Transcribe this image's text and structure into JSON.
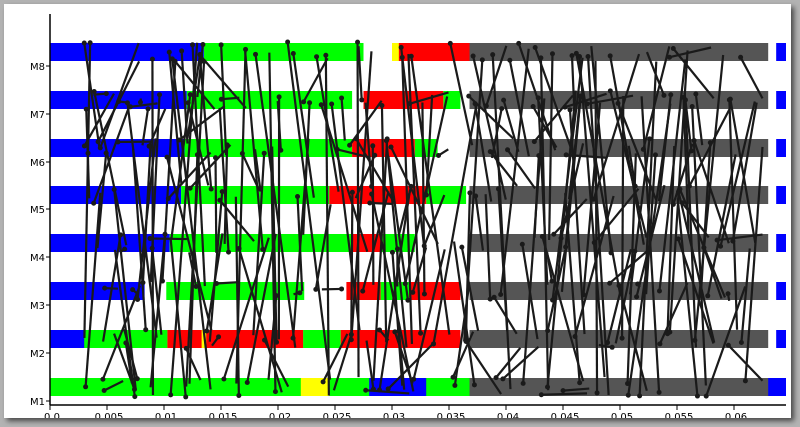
{
  "chart_data": {
    "type": "gantt",
    "title": "",
    "xlabel": "",
    "ylabel": "",
    "xlim": [
      0,
      0.0635
    ],
    "x_ticks": [
      "0.0",
      "0.005",
      "0.01",
      "0.015",
      "0.02",
      "0.025",
      "0.03",
      "0.035",
      "0.04",
      "0.045",
      "0.05",
      "0.055",
      "0.06"
    ],
    "x_tick_values": [
      0,
      0.005,
      0.01,
      0.015,
      0.02,
      0.025,
      0.03,
      0.035,
      0.04,
      0.045,
      0.05,
      0.055,
      0.06
    ],
    "categories": [
      "M1",
      "M2",
      "M3",
      "M4",
      "M5",
      "M6",
      "M7",
      "M8"
    ],
    "colors": {
      "blue": "#0000ff",
      "green": "#00ff00",
      "red": "#ff0000",
      "yellow": "#ffff00",
      "gray": "#555555",
      "line": "#1a1a1a"
    },
    "series": [
      {
        "name": "",
        "color": "blue",
        "intervals": [
          [
            0,
            0,
            0.0695
          ],
          [
            1,
            0,
            0.008
          ],
          [
            2,
            0,
            0.0083
          ],
          [
            3,
            0,
            0.0105
          ],
          [
            4,
            0,
            0.0115
          ],
          [
            5,
            0,
            0.0118
          ],
          [
            6,
            0,
            0.012
          ],
          [
            7,
            0,
            0.0135
          ],
          [
            0,
            0.0637,
            0.0648
          ],
          [
            1,
            0.0637,
            0.0648
          ],
          [
            2,
            0.0637,
            0.0648
          ],
          [
            3,
            0.0637,
            0.0648
          ],
          [
            4,
            0.0637,
            0.0648
          ],
          [
            5,
            0.0637,
            0.0648
          ],
          [
            6,
            0.0637,
            0.0648
          ],
          [
            7,
            0.0637,
            0.0648
          ]
        ]
      },
      {
        "name": "",
        "color": "green",
        "intervals": [
          [
            0,
            0,
            0.023
          ],
          [
            0,
            0.0245,
            0.028
          ],
          [
            1,
            0.003,
            0.0103
          ],
          [
            1,
            0.0222,
            0.0255
          ],
          [
            2,
            0.0102,
            0.0223
          ],
          [
            2,
            0.029,
            0.0315
          ],
          [
            3,
            0.0105,
            0.0265
          ],
          [
            3,
            0.029,
            0.032
          ],
          [
            4,
            0.0115,
            0.0245
          ],
          [
            4,
            0.033,
            0.0365
          ],
          [
            5,
            0.0118,
            0.0265
          ],
          [
            5,
            0.032,
            0.034
          ],
          [
            6,
            0.012,
            0.0265
          ],
          [
            6,
            0.0345,
            0.036
          ],
          [
            7,
            0.0135,
            0.0275
          ],
          [
            7,
            0.039,
            0.041
          ],
          [
            0,
            0.033,
            0.0395
          ],
          [
            0,
            0.0555,
            0.059
          ]
        ]
      },
      {
        "name": "",
        "color": "red",
        "intervals": [
          [
            1,
            0.0103,
            0.0222
          ],
          [
            1,
            0.0255,
            0.036
          ],
          [
            2,
            0.026,
            0.029
          ],
          [
            2,
            0.0315,
            0.036
          ],
          [
            3,
            0.0265,
            0.029
          ],
          [
            4,
            0.0245,
            0.033
          ],
          [
            5,
            0.0265,
            0.032
          ],
          [
            6,
            0.0275,
            0.0345
          ],
          [
            7,
            0.0305,
            0.039
          ],
          [
            0,
            0.059,
            0.062
          ]
        ]
      },
      {
        "name": "",
        "color": "yellow",
        "intervals": [
          [
            0,
            0.022,
            0.0245
          ],
          [
            0,
            0.052,
            0.0545
          ],
          [
            7,
            0.03,
            0.0306
          ],
          [
            1,
            0.0133,
            0.0137
          ]
        ]
      },
      {
        "name": "",
        "color": "gray",
        "intervals": [
          [
            0,
            0.0368,
            0.063
          ],
          [
            1,
            0.0368,
            0.063
          ],
          [
            2,
            0.0368,
            0.063
          ],
          [
            3,
            0.0368,
            0.063
          ],
          [
            4,
            0.0368,
            0.063
          ],
          [
            5,
            0.0368,
            0.063
          ],
          [
            6,
            0.0368,
            0.063
          ],
          [
            7,
            0.0368,
            0.063
          ]
        ]
      }
    ],
    "grid": false,
    "legend": "none"
  }
}
